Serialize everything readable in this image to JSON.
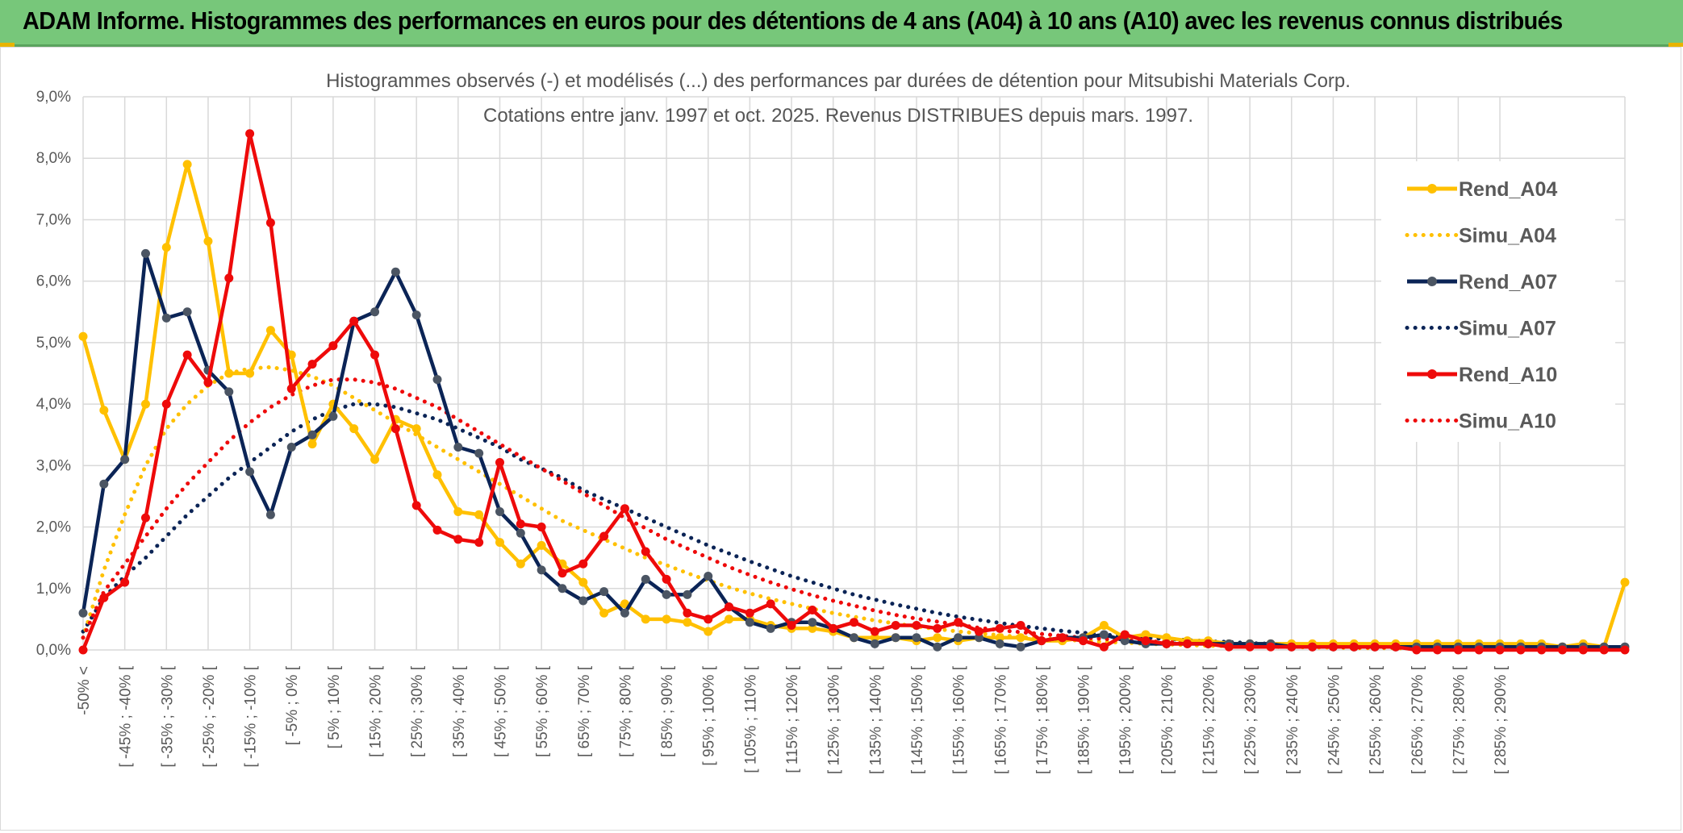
{
  "header": {
    "title": "ADAM Informe. Histogrammes des performances en euros pour des détentions de 4 ans (A04) à 10 ans (A10) avec les revenus connus distribués"
  },
  "colors": {
    "banner": "#77c77a",
    "grid": "#d9d9d9",
    "A04": "#ffc000",
    "A07": "#0b2456",
    "A10": "#ee0a0a",
    "marker_A07": "#4b5563"
  },
  "chart_data": {
    "type": "line",
    "title_lines": [
      "Histogrammes observés (-) et modélisés (...) des performances par durées de détention pour Mitsubishi Materials Corp.",
      "Cotations entre janv. 1997 et oct. 2025. Revenus DISTRIBUES depuis mars. 1997."
    ],
    "ylim": [
      0,
      9
    ],
    "y_ticks": [
      0,
      1,
      2,
      3,
      4,
      5,
      6,
      7,
      8,
      9
    ],
    "y_tick_labels": [
      "0,0%",
      "1,0%",
      "2,0%",
      "3,0%",
      "4,0%",
      "5,0%",
      "6,0%",
      "7,0%",
      "8,0%",
      "9,0%"
    ],
    "grid": true,
    "legend_position": "right",
    "x_tick_labels": [
      "-50% <",
      "[ -45% ; -40% [",
      "[ -35% ; -30% [",
      "[ -25% ; -20% [",
      "[ -15% ; -10% [",
      "[ -5% ; 0% [",
      "[ 5% ; 10% [",
      "[ 15% ; 20% [",
      "[ 25% ; 30% [",
      "[ 35% ; 40% [",
      "[ 45% ; 50% [",
      "[ 55% ; 60% [",
      "[ 65% ; 70% [",
      "[ 75% ; 80% [",
      "[ 85% ; 90% [",
      "[ 95% ; 100% [",
      "[ 105% ; 110% [",
      "[ 115% ; 120% [",
      "[ 125% ; 130% [",
      "[ 135% ; 140% [",
      "[ 145% ; 150% [",
      "[ 155% ; 160% [",
      "[ 165% ; 170% [",
      "[ 175% ; 180% [",
      "[ 185% ; 190% [",
      "[ 195% ; 200% [",
      "[ 205% ; 210% [",
      "[ 215% ; 220% [",
      "[ 225% ; 230% [",
      "[ 235% ; 240% [",
      "[ 245% ; 250% [",
      "[ 255% ; 260% [",
      "[ 265% ; 270% [",
      "[ 275% ; 280% [",
      "[ 285% ; 290% ["
    ],
    "series": [
      {
        "name": "Rend_A04",
        "style": "solid",
        "color_key": "A04",
        "values": [
          5.1,
          3.9,
          3.1,
          4.0,
          6.55,
          7.9,
          6.65,
          4.5,
          4.5,
          5.2,
          4.8,
          3.35,
          4.0,
          3.6,
          3.1,
          3.75,
          3.6,
          2.85,
          2.25,
          2.2,
          1.75,
          1.4,
          1.7,
          1.4,
          1.1,
          0.6,
          0.75,
          0.5,
          0.5,
          0.45,
          0.3,
          0.5,
          0.5,
          0.4,
          0.35,
          0.35,
          0.3,
          0.2,
          0.2,
          0.2,
          0.15,
          0.2,
          0.15,
          0.2,
          0.2,
          0.2,
          0.15,
          0.15,
          0.2,
          0.4,
          0.2,
          0.25,
          0.2,
          0.15,
          0.15,
          0.1,
          0.1,
          0.1,
          0.1,
          0.1,
          0.1,
          0.1,
          0.1,
          0.1,
          0.1,
          0.1,
          0.1,
          0.1,
          0.1,
          0.1,
          0.1,
          0.05,
          0.1,
          0.05,
          1.1
        ]
      },
      {
        "name": "Simu_A04",
        "style": "dotted",
        "color_key": "A04",
        "values": [
          0.2,
          1.3,
          2.2,
          3.0,
          3.6,
          4.0,
          4.3,
          4.5,
          4.58,
          4.6,
          4.55,
          4.45,
          4.3,
          4.1,
          3.9,
          3.7,
          3.5,
          3.3,
          3.1,
          2.9,
          2.7,
          2.5,
          2.3,
          2.1,
          1.95,
          1.8,
          1.65,
          1.5,
          1.38,
          1.25,
          1.13,
          1.02,
          0.92,
          0.83,
          0.75,
          0.67,
          0.6,
          0.54,
          0.48,
          0.43,
          0.38,
          0.34,
          0.3,
          0.27,
          0.24,
          0.21,
          0.19,
          0.17,
          0.15,
          0.13,
          0.12,
          0.1,
          0.09,
          0.08,
          0.07,
          0.06,
          0.06,
          0.05,
          0.05,
          0.04,
          0.04,
          0.03,
          0.03,
          0.03,
          0.02,
          0.02,
          0.02,
          0.02,
          0.01,
          0.01,
          0.01,
          0.01,
          0.01,
          0.01,
          0.01
        ]
      },
      {
        "name": "Rend_A07",
        "style": "solid",
        "color_key": "A07",
        "values": [
          0.6,
          2.7,
          3.1,
          6.45,
          5.4,
          5.5,
          4.55,
          4.2,
          2.9,
          2.2,
          3.3,
          3.5,
          3.8,
          5.35,
          5.5,
          6.15,
          5.45,
          4.4,
          3.3,
          3.2,
          2.25,
          1.9,
          1.3,
          1.0,
          0.8,
          0.95,
          0.6,
          1.15,
          0.9,
          0.9,
          1.2,
          0.7,
          0.45,
          0.35,
          0.45,
          0.45,
          0.35,
          0.2,
          0.1,
          0.2,
          0.2,
          0.05,
          0.2,
          0.2,
          0.1,
          0.05,
          0.15,
          0.2,
          0.2,
          0.25,
          0.15,
          0.1,
          0.1,
          0.1,
          0.1,
          0.1,
          0.1,
          0.1,
          0.05,
          0.05,
          0.05,
          0.05,
          0.05,
          0.05,
          0.05,
          0.05,
          0.05,
          0.05,
          0.05,
          0.05,
          0.05,
          0.05,
          0.05,
          0.05,
          0.05
        ]
      },
      {
        "name": "Simu_A07",
        "style": "dotted",
        "color_key": "A07",
        "values": [
          0.3,
          0.85,
          1.2,
          1.5,
          1.85,
          2.2,
          2.5,
          2.8,
          3.05,
          3.3,
          3.55,
          3.75,
          3.9,
          4.0,
          4.0,
          3.95,
          3.85,
          3.75,
          3.6,
          3.45,
          3.3,
          3.1,
          2.95,
          2.8,
          2.6,
          2.45,
          2.3,
          2.15,
          2.0,
          1.85,
          1.7,
          1.57,
          1.44,
          1.32,
          1.2,
          1.1,
          1.0,
          0.9,
          0.82,
          0.74,
          0.67,
          0.6,
          0.54,
          0.49,
          0.44,
          0.39,
          0.35,
          0.31,
          0.28,
          0.25,
          0.22,
          0.2,
          0.18,
          0.16,
          0.14,
          0.13,
          0.11,
          0.1,
          0.09,
          0.08,
          0.07,
          0.07,
          0.06,
          0.05,
          0.05,
          0.04,
          0.04,
          0.03,
          0.03,
          0.03,
          0.02,
          0.02,
          0.02,
          0.02,
          0.02
        ]
      },
      {
        "name": "Rend_A10",
        "style": "solid",
        "color_key": "A10",
        "values": [
          0.0,
          0.85,
          1.1,
          2.15,
          4.0,
          4.8,
          4.35,
          6.05,
          8.4,
          6.95,
          4.25,
          4.65,
          4.95,
          5.35,
          4.8,
          3.6,
          2.35,
          1.95,
          1.8,
          1.75,
          3.05,
          2.05,
          2.0,
          1.25,
          1.4,
          1.85,
          2.3,
          1.6,
          1.15,
          0.6,
          0.5,
          0.7,
          0.6,
          0.75,
          0.4,
          0.65,
          0.35,
          0.45,
          0.3,
          0.4,
          0.4,
          0.35,
          0.45,
          0.3,
          0.35,
          0.4,
          0.15,
          0.2,
          0.15,
          0.05,
          0.25,
          0.15,
          0.1,
          0.1,
          0.1,
          0.05,
          0.05,
          0.05,
          0.05,
          0.05,
          0.05,
          0.05,
          0.05,
          0.05,
          0.0,
          0.0,
          0.0,
          0.0,
          0.0,
          0.0,
          0.0,
          0.0,
          0.0,
          0.0,
          0.0
        ]
      },
      {
        "name": "Simu_A10",
        "style": "dotted",
        "color_key": "A10",
        "values": [
          0.2,
          0.95,
          1.4,
          1.85,
          2.3,
          2.7,
          3.05,
          3.4,
          3.7,
          3.95,
          4.15,
          4.3,
          4.4,
          4.4,
          4.35,
          4.25,
          4.1,
          3.95,
          3.75,
          3.55,
          3.35,
          3.15,
          2.95,
          2.75,
          2.55,
          2.35,
          2.15,
          1.98,
          1.8,
          1.65,
          1.5,
          1.35,
          1.22,
          1.1,
          0.99,
          0.89,
          0.8,
          0.72,
          0.64,
          0.57,
          0.51,
          0.46,
          0.41,
          0.36,
          0.32,
          0.29,
          0.26,
          0.23,
          0.2,
          0.18,
          0.16,
          0.14,
          0.13,
          0.11,
          0.1,
          0.09,
          0.08,
          0.07,
          0.06,
          0.06,
          0.05,
          0.04,
          0.04,
          0.04,
          0.03,
          0.03,
          0.03,
          0.02,
          0.02,
          0.02,
          0.02,
          0.02,
          0.01,
          0.01,
          0.01
        ]
      }
    ]
  }
}
